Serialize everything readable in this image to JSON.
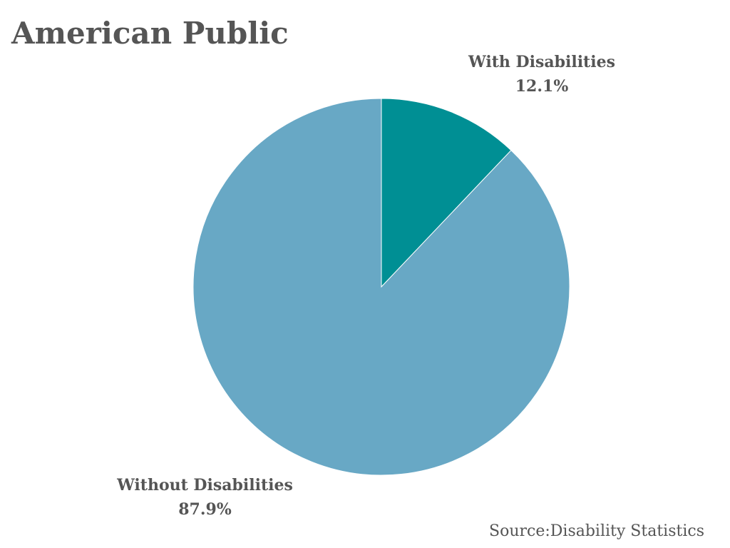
{
  "chart_data": {
    "type": "pie",
    "title": "American Public",
    "slices": [
      {
        "label": "With Disabilities",
        "value": 12.1,
        "value_label": "12.1%",
        "color": "#008F94"
      },
      {
        "label": "Without Disabilities",
        "value": 87.9,
        "value_label": "87.9%",
        "color": "#68A8C5"
      }
    ],
    "start_angle": "12 o'clock",
    "direction": "clockwise",
    "source": "Source:Disability Statistics"
  }
}
